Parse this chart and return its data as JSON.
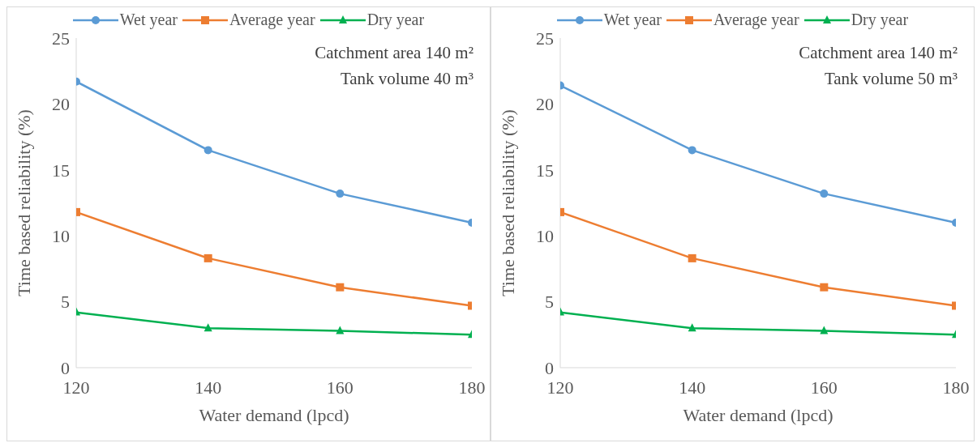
{
  "chart_data": [
    {
      "type": "line",
      "xlabel": "Water demand (lpcd)",
      "ylabel": "Time based reliability (%)",
      "x": [
        120,
        140,
        160,
        180
      ],
      "xlim": [
        120,
        180
      ],
      "xticks": [
        120,
        140,
        160,
        180
      ],
      "ylim": [
        0,
        25
      ],
      "yticks": [
        0,
        5,
        10,
        15,
        20,
        25
      ],
      "legend": "top",
      "grid": false,
      "annotations": [
        "Catchment area 140 m²",
        "Tank volume 40 m³"
      ],
      "series": [
        {
          "name": "Wet year",
          "color": "#5b9bd5",
          "marker": "circle",
          "values": [
            21.7,
            16.5,
            13.2,
            11.0
          ]
        },
        {
          "name": "Average year",
          "color": "#ed7d31",
          "marker": "square",
          "values": [
            11.8,
            8.3,
            6.1,
            4.7
          ]
        },
        {
          "name": "Dry year",
          "color": "#00b050",
          "marker": "triangle",
          "values": [
            4.2,
            3.0,
            2.8,
            2.5
          ]
        }
      ]
    },
    {
      "type": "line",
      "xlabel": "Water demand (lpcd)",
      "ylabel": "Time based reliability (%)",
      "x": [
        120,
        140,
        160,
        180
      ],
      "xlim": [
        120,
        180
      ],
      "xticks": [
        120,
        140,
        160,
        180
      ],
      "ylim": [
        0,
        25
      ],
      "yticks": [
        0,
        5,
        10,
        15,
        20,
        25
      ],
      "legend": "top",
      "grid": false,
      "annotations": [
        "Catchment area 140 m²",
        "Tank volume 50 m³"
      ],
      "series": [
        {
          "name": "Wet year",
          "color": "#5b9bd5",
          "marker": "circle",
          "values": [
            21.4,
            16.5,
            13.2,
            11.0
          ]
        },
        {
          "name": "Average year",
          "color": "#ed7d31",
          "marker": "square",
          "values": [
            11.8,
            8.3,
            6.1,
            4.7
          ]
        },
        {
          "name": "Dry year",
          "color": "#00b050",
          "marker": "triangle",
          "values": [
            4.2,
            3.0,
            2.8,
            2.5
          ]
        }
      ]
    }
  ]
}
